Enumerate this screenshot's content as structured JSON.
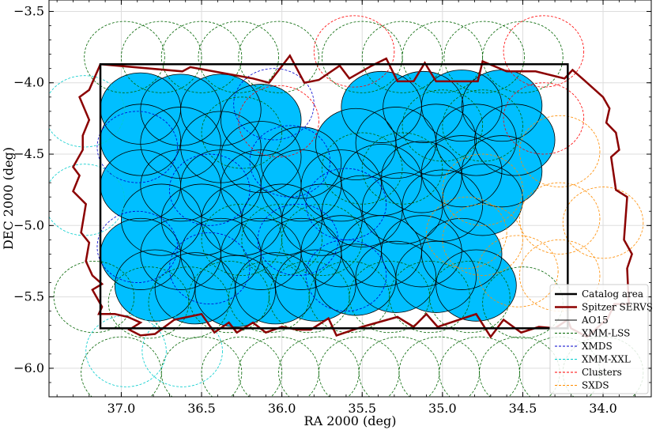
{
  "chart_data": {
    "type": "scatter",
    "xlabel": "RA 2000 (deg)",
    "ylabel": "DEC 2000 (deg)",
    "xlim": [
      37.45,
      33.7
    ],
    "ylim": [
      -6.2,
      -3.42
    ],
    "x_ticks": [
      37.0,
      36.5,
      36.0,
      35.5,
      35.0,
      34.5,
      34.0
    ],
    "x_tick_labels": [
      "37.0",
      "36.5",
      "36.0",
      "35.5",
      "35.0",
      "34.5",
      "34.0"
    ],
    "y_ticks": [
      -3.5,
      -4.0,
      -4.5,
      -5.0,
      -5.5,
      -6.0
    ],
    "y_tick_labels": [
      "−3.5",
      "−4.0",
      "−4.5",
      "−5.0",
      "−5.5",
      "−6.0"
    ],
    "grid": true,
    "legend_position": "bottom-right",
    "catalog_area": {
      "ra_min": 34.22,
      "ra_max": 37.13,
      "dec_min": -5.72,
      "dec_max": -3.87
    },
    "pointing_radius_deg": 0.25,
    "series": [
      {
        "name": "Catalog area",
        "color": "#000000",
        "style": "solid-thick"
      },
      {
        "name": "Spitzer SERVS",
        "color": "#8b0000",
        "style": "solid-thick",
        "outline": [
          [
            37.13,
            -3.87
          ],
          [
            36.62,
            -3.92
          ],
          [
            36.57,
            -3.89
          ],
          [
            36.18,
            -3.97
          ],
          [
            36.08,
            -4.0
          ],
          [
            35.95,
            -3.81
          ],
          [
            35.86,
            -4.0
          ],
          [
            35.77,
            -3.98
          ],
          [
            35.64,
            -3.88
          ],
          [
            35.58,
            -3.97
          ],
          [
            35.44,
            -3.88
          ],
          [
            35.35,
            -3.83
          ],
          [
            35.28,
            -3.99
          ],
          [
            35.18,
            -3.99
          ],
          [
            35.11,
            -3.86
          ],
          [
            35.04,
            -3.99
          ],
          [
            34.78,
            -3.99
          ],
          [
            34.75,
            -3.85
          ],
          [
            34.6,
            -3.92
          ],
          [
            34.42,
            -3.92
          ],
          [
            34.24,
            -3.97
          ],
          [
            34.19,
            -3.91
          ],
          [
            34.12,
            -3.98
          ],
          [
            34.0,
            -4.1
          ],
          [
            33.96,
            -4.18
          ],
          [
            33.98,
            -4.28
          ],
          [
            33.92,
            -4.35
          ],
          [
            33.9,
            -4.47
          ],
          [
            33.95,
            -4.52
          ],
          [
            33.92,
            -4.75
          ],
          [
            33.85,
            -4.8
          ],
          [
            33.87,
            -5.1
          ],
          [
            33.82,
            -5.2
          ],
          [
            33.85,
            -5.3
          ],
          [
            33.84,
            -5.55
          ],
          [
            33.93,
            -5.55
          ],
          [
            33.97,
            -5.65
          ],
          [
            34.1,
            -5.78
          ],
          [
            34.2,
            -5.72
          ],
          [
            34.22,
            -5.66
          ],
          [
            34.3,
            -5.72
          ],
          [
            34.4,
            -5.71
          ],
          [
            34.51,
            -5.75
          ],
          [
            34.62,
            -5.66
          ],
          [
            34.7,
            -5.78
          ],
          [
            34.79,
            -5.62
          ],
          [
            35.03,
            -5.71
          ],
          [
            35.1,
            -5.62
          ],
          [
            35.18,
            -5.71
          ],
          [
            35.28,
            -5.64
          ],
          [
            35.5,
            -5.71
          ],
          [
            35.66,
            -5.77
          ],
          [
            35.71,
            -5.65
          ],
          [
            35.82,
            -5.73
          ],
          [
            35.9,
            -5.73
          ],
          [
            36.0,
            -5.71
          ],
          [
            36.1,
            -5.75
          ],
          [
            36.18,
            -5.68
          ],
          [
            36.28,
            -5.75
          ],
          [
            36.33,
            -5.68
          ],
          [
            36.42,
            -5.75
          ],
          [
            36.5,
            -5.62
          ],
          [
            36.67,
            -5.66
          ],
          [
            36.79,
            -5.76
          ],
          [
            36.88,
            -5.77
          ],
          [
            36.95,
            -5.73
          ],
          [
            36.88,
            -5.68
          ],
          [
            36.96,
            -5.64
          ],
          [
            37.04,
            -5.62
          ],
          [
            37.14,
            -5.62
          ],
          [
            37.12,
            -5.57
          ],
          [
            37.18,
            -5.45
          ],
          [
            37.12,
            -5.41
          ],
          [
            37.18,
            -5.35
          ],
          [
            37.22,
            -5.25
          ],
          [
            37.2,
            -5.12
          ],
          [
            37.25,
            -5.05
          ],
          [
            37.22,
            -4.85
          ],
          [
            37.3,
            -4.76
          ],
          [
            37.26,
            -4.65
          ],
          [
            37.3,
            -4.59
          ],
          [
            37.24,
            -4.47
          ],
          [
            37.24,
            -4.37
          ],
          [
            37.2,
            -4.26
          ],
          [
            37.26,
            -4.1
          ],
          [
            37.2,
            -4.05
          ]
        ]
      },
      {
        "name": "AO15",
        "color": "#00bfff",
        "edge_color": "#000000",
        "style": "filled-circle",
        "centers": [
          [
            36.88,
            -4.18
          ],
          [
            36.63,
            -4.19
          ],
          [
            36.38,
            -4.19
          ],
          [
            36.13,
            -4.26
          ],
          [
            35.38,
            -4.17
          ],
          [
            35.12,
            -4.17
          ],
          [
            34.88,
            -4.16
          ],
          [
            34.63,
            -4.16
          ],
          [
            36.88,
            -4.4
          ],
          [
            36.63,
            -4.42
          ],
          [
            36.38,
            -4.45
          ],
          [
            36.13,
            -4.52
          ],
          [
            35.88,
            -4.56
          ],
          [
            35.54,
            -4.43
          ],
          [
            35.29,
            -4.42
          ],
          [
            35.04,
            -4.4
          ],
          [
            34.79,
            -4.4
          ],
          [
            34.55,
            -4.4
          ],
          [
            36.88,
            -4.72
          ],
          [
            36.63,
            -4.72
          ],
          [
            36.38,
            -4.72
          ],
          [
            36.13,
            -4.72
          ],
          [
            35.88,
            -4.72
          ],
          [
            35.63,
            -4.72
          ],
          [
            35.38,
            -4.68
          ],
          [
            35.13,
            -4.66
          ],
          [
            34.88,
            -4.62
          ],
          [
            34.63,
            -4.62
          ],
          [
            36.75,
            -4.96
          ],
          [
            36.5,
            -4.96
          ],
          [
            36.25,
            -4.96
          ],
          [
            36.0,
            -4.96
          ],
          [
            35.75,
            -4.96
          ],
          [
            35.5,
            -4.9
          ],
          [
            35.25,
            -4.88
          ],
          [
            35.0,
            -4.86
          ],
          [
            34.75,
            -4.82
          ],
          [
            36.88,
            -5.2
          ],
          [
            36.63,
            -5.2
          ],
          [
            36.38,
            -5.2
          ],
          [
            36.13,
            -5.2
          ],
          [
            35.88,
            -5.2
          ],
          [
            35.63,
            -5.18
          ],
          [
            35.38,
            -5.18
          ],
          [
            35.13,
            -5.18
          ],
          [
            34.88,
            -5.2
          ],
          [
            36.79,
            -5.42
          ],
          [
            36.54,
            -5.44
          ],
          [
            36.29,
            -5.46
          ],
          [
            36.04,
            -5.44
          ],
          [
            35.79,
            -5.42
          ],
          [
            35.54,
            -5.38
          ],
          [
            35.29,
            -5.36
          ],
          [
            35.04,
            -5.36
          ],
          [
            34.79,
            -5.42
          ]
        ]
      },
      {
        "name": "XMM-LSS",
        "color": "#006400",
        "style": "dashed-circle",
        "centers": [
          [
            36.98,
            -3.82
          ],
          [
            36.75,
            -3.82
          ],
          [
            36.5,
            -3.82
          ],
          [
            36.27,
            -3.82
          ],
          [
            36.02,
            -3.82
          ],
          [
            35.5,
            -3.82
          ],
          [
            35.25,
            -3.82
          ],
          [
            35.0,
            -3.82
          ],
          [
            34.74,
            -3.82
          ],
          [
            34.5,
            -3.82
          ],
          [
            37.17,
            -5.5
          ],
          [
            36.83,
            -5.54
          ],
          [
            36.58,
            -5.54
          ],
          [
            36.33,
            -5.5
          ],
          [
            36.08,
            -5.5
          ],
          [
            35.83,
            -5.5
          ],
          [
            35.58,
            -5.5
          ],
          [
            35.33,
            -5.5
          ],
          [
            35.08,
            -5.5
          ],
          [
            34.83,
            -5.5
          ],
          [
            34.5,
            -5.54
          ],
          [
            37.0,
            -6.03
          ],
          [
            36.5,
            -6.03
          ],
          [
            36.25,
            -6.03
          ],
          [
            36.02,
            -6.03
          ],
          [
            35.77,
            -6.03
          ],
          [
            35.52,
            -6.03
          ],
          [
            35.27,
            -6.03
          ],
          [
            35.02,
            -6.03
          ],
          [
            34.77,
            -6.03
          ],
          [
            34.52,
            -6.03
          ],
          [
            34.27,
            -6.03
          ],
          [
            34.0,
            -6.03
          ],
          [
            36.25,
            -4.35
          ],
          [
            36.25,
            -5.1
          ],
          [
            36.0,
            -5.1
          ],
          [
            35.75,
            -5.1
          ],
          [
            35.5,
            -4.6
          ],
          [
            35.25,
            -4.6
          ],
          [
            35.0,
            -4.3
          ],
          [
            34.75,
            -4.3
          ]
        ]
      },
      {
        "name": "XMDS",
        "color": "#0000cd",
        "style": "dashed-circle",
        "centers": [
          [
            36.9,
            -4.45
          ],
          [
            36.9,
            -5.15
          ],
          [
            36.45,
            -4.75
          ],
          [
            36.45,
            -5.3
          ],
          [
            36.05,
            -4.15
          ],
          [
            35.95,
            -4.55
          ],
          [
            35.9,
            -5.1
          ],
          [
            35.6,
            -4.85
          ],
          [
            35.6,
            -5.35
          ]
        ]
      },
      {
        "name": "XMM-XXL",
        "color": "#00cccc",
        "style": "dashed-circle",
        "centers": [
          [
            37.23,
            -4.2
          ],
          [
            37.23,
            -4.82
          ],
          [
            36.97,
            -5.88
          ],
          [
            36.62,
            -5.88
          ]
        ]
      },
      {
        "name": "Clusters",
        "color": "#ff0000",
        "style": "dashed-circle",
        "centers": [
          [
            35.55,
            -3.78
          ],
          [
            34.37,
            -3.78
          ],
          [
            34.37,
            -4.25
          ],
          [
            36.02,
            -4.27
          ]
        ]
      },
      {
        "name": "SXDS",
        "color": "#ff8c00",
        "style": "dashed-circle",
        "centers": [
          [
            34.27,
            -4.48
          ],
          [
            34.75,
            -4.75
          ],
          [
            34.27,
            -4.95
          ],
          [
            34.0,
            -4.98
          ],
          [
            34.75,
            -5.1
          ],
          [
            34.27,
            -5.35
          ],
          [
            34.53,
            -5.32
          ],
          [
            34.85,
            -5.05
          ]
        ]
      }
    ]
  }
}
